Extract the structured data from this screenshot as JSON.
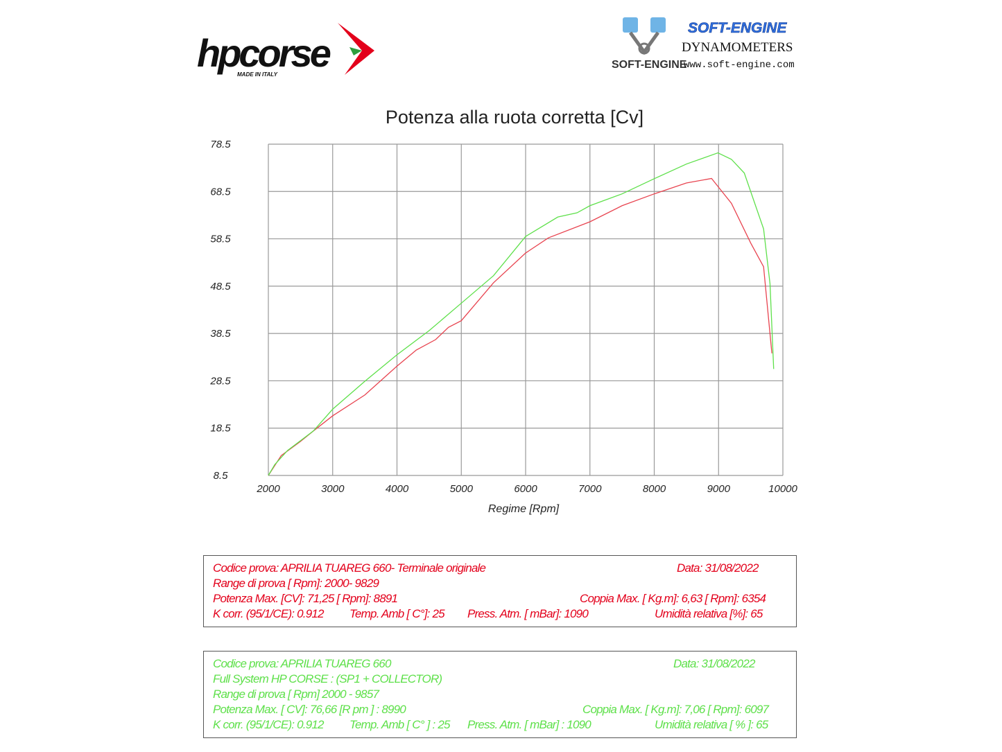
{
  "logos": {
    "left": {
      "brand": "hpcorse",
      "tagline": "MADE IN ITALY"
    },
    "right": {
      "brand": "SOFT-ENGINE",
      "line2": "DYNAMOMETERS",
      "url": "www.soft-engine.com",
      "mark": "SOFT-ENGINE"
    }
  },
  "chart_data": {
    "type": "line",
    "title": "Potenza alla ruota corretta [Cv]",
    "xlabel": "Regime [Rpm]",
    "ylabel": "",
    "xlim": [
      2000,
      10000
    ],
    "ylim": [
      8.5,
      78.5
    ],
    "xticks": [
      "2000",
      "3000",
      "4000",
      "5000",
      "6000",
      "7000",
      "8000",
      "9000",
      "10000"
    ],
    "yticks": [
      "78.5",
      "68.5",
      "58.5",
      "48.5",
      "38.5",
      "28.5",
      "18.5",
      "8.5"
    ],
    "grid": true,
    "series": [
      {
        "color": "#e8434f",
        "points": [
          [
            2000,
            8.5
          ],
          [
            2200,
            12.7
          ],
          [
            2500,
            15.7
          ],
          [
            2700,
            17.9
          ],
          [
            3000,
            21.1
          ],
          [
            3500,
            25.5
          ],
          [
            4000,
            31.6
          ],
          [
            4300,
            35
          ],
          [
            4600,
            37.2
          ],
          [
            4800,
            39.8
          ],
          [
            5000,
            41.2
          ],
          [
            5500,
            49.2
          ],
          [
            6000,
            55.5
          ],
          [
            6354,
            58.7
          ],
          [
            7000,
            62.1
          ],
          [
            7500,
            65.5
          ],
          [
            8000,
            68
          ],
          [
            8500,
            70.3
          ],
          [
            8891,
            71.25
          ],
          [
            9000,
            69.4
          ],
          [
            9200,
            66
          ],
          [
            9500,
            57.6
          ],
          [
            9700,
            52.6
          ],
          [
            9829,
            34.3
          ]
        ]
      },
      {
        "color": "#5ee04a",
        "points": [
          [
            2000,
            8.5
          ],
          [
            2100,
            10.8
          ],
          [
            2300,
            13.8
          ],
          [
            2700,
            17.9
          ],
          [
            3000,
            22.5
          ],
          [
            3500,
            28.4
          ],
          [
            4000,
            34
          ],
          [
            4500,
            39.1
          ],
          [
            5000,
            44.9
          ],
          [
            5500,
            50.7
          ],
          [
            6000,
            59
          ],
          [
            6500,
            63.1
          ],
          [
            6800,
            64
          ],
          [
            7000,
            65.5
          ],
          [
            7500,
            68
          ],
          [
            8000,
            71.2
          ],
          [
            8500,
            74.3
          ],
          [
            8990,
            76.66
          ],
          [
            9200,
            75.3
          ],
          [
            9400,
            72.4
          ],
          [
            9700,
            60.6
          ],
          [
            9800,
            49
          ],
          [
            9857,
            31
          ]
        ]
      }
    ]
  },
  "box_red": {
    "code": "Codice prova: APRILIA TUAREG 660- Terminale originale",
    "date": "Data: 31/08/2022",
    "range": "Range di prova  [ Rpm]: 2000- 9829",
    "power": "Potenza Max. [CV]:  71,25 [ Rpm]: 8891",
    "torque": "Coppia Max. [ Kg.m]:  6,63 [ Rpm]: 6354",
    "kcorr": "K corr. (95/1/CE): 0.912",
    "temp": "Temp. Amb  [ C°]: 25",
    "press": "Press. Atm.  [ mBar]: 1090",
    "humidity": "Umidità relativa [%]: 65"
  },
  "box_green": {
    "code": "Codice prova: APRILIA TUAREG 660",
    "date": "Data: 31/08/2022",
    "system": "Full System HP CORSE :  (SP1  +  COLLECTOR)",
    "range": "Range di prova [ Rpm] 2000 - 9857",
    "power": "Potenza Max. [ CV]:  76,66  [R pm ] : 8990",
    "torque": "Coppia Max.  [ Kg.m]:  7,06  [ Rpm]: 6097",
    "kcorr": "K corr. (95/1/CE): 0.912",
    "temp": "Temp. Amb [ C° ] : 25",
    "press": "Press. Atm. [ mBar] : 1090",
    "humidity": "Umidità relativa [ % ]: 65"
  }
}
